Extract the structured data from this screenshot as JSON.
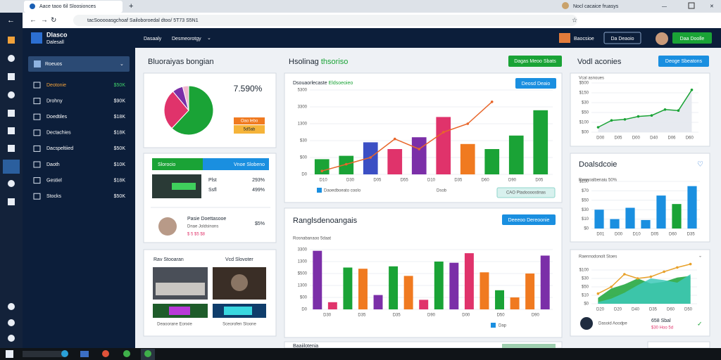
{
  "browser": {
    "tab": "Aace taoo 6il Sloosionces",
    "tab2": "Nocl cacaice fruasys",
    "url": "tacSooooasgchoaf Sailoboroedal dtoo/ 5T73 S5N1"
  },
  "header": {
    "brand": "Dlasco",
    "brand_sub": "Dalesall",
    "nav1": "Dasaaly",
    "nav2": "Desmeorotgy",
    "user": "Baocsioe",
    "btn1": "Da Deaoio",
    "btn2": "Daa Doolle"
  },
  "sidebar": {
    "selector": "Roeuos",
    "items": [
      {
        "label": "Deotonie",
        "value": "$50K"
      },
      {
        "label": "Drohny",
        "value": "$90K"
      },
      {
        "label": "Doedtiles",
        "value": "$18K"
      },
      {
        "label": "Dectachies",
        "value": "$18K"
      },
      {
        "label": "Dacspeltiied",
        "value": "$50K"
      },
      {
        "label": "Daoth",
        "value": "$10K"
      },
      {
        "label": "Gestiel",
        "value": "$18K"
      },
      {
        "label": "Stocks",
        "value": "$50K"
      }
    ]
  },
  "panel_a": {
    "title": "Bluoraiyas bongian",
    "big_value": "7.590%",
    "badge1": "Oao lebo",
    "badge2": "5d5ab",
    "pie": {
      "values": [
        62,
        27,
        7,
        4
      ],
      "colors": [
        "#1aa336",
        "#e0336b",
        "#7b2fa8",
        "#f2b8cf"
      ]
    }
  },
  "panel_b": {
    "tab_left": "Slorocio",
    "tab_right": "Vnoe Slobeno",
    "row1_a": "Plst",
    "row1_b": "Ssfl",
    "row1_c": "293%",
    "row1_d": "499%",
    "row2_a": "Pasie Doettasooe",
    "row2_b": "Dnae Joldsinons",
    "row2_c": "$ 5 $5 $8",
    "row2_d": "$5%"
  },
  "panel_c": {
    "label_left": "Rav Stooaran",
    "label_right": "Vcd Slovoter",
    "caption_left": "Deaoorane Eonxie",
    "caption_right": "Sceorofen Sloone"
  },
  "middle": {
    "title": "Hsolinag",
    "title_accent": "thsoriso",
    "button": "Dagas Meoo Sbats"
  },
  "chart1": {
    "title": "Dsouaorlecaste",
    "title_accent": "Eldsoeoieo",
    "button": "Deosd Deaio",
    "legend_a": "Daoedboeato coolo",
    "legend_b": "Dsob",
    "badge": "CAO Ptadoooostinas",
    "ylim": [
      0,
      5
    ],
    "yticks": [
      {
        "value": 0,
        "label": "D0"
      },
      {
        "value": 1,
        "label": "$00"
      },
      {
        "value": 2,
        "label": "$30"
      },
      {
        "value": 3,
        "label": "1300"
      },
      {
        "value": 4,
        "label": "3300"
      },
      {
        "value": 5,
        "label": "5300"
      }
    ],
    "x_labels": [
      "D10",
      "D30",
      "D05",
      "D55",
      "D10",
      "D35",
      "D60",
      "D90",
      "D05"
    ],
    "bars": [
      {
        "value": 0.9,
        "color": "#1aa336"
      },
      {
        "value": 1.1,
        "color": "#1aa336"
      },
      {
        "value": 1.9,
        "color": "#3b4fc4"
      },
      {
        "value": 1.5,
        "color": "#e0336b"
      },
      {
        "value": 2.2,
        "color": "#7b2fa8"
      },
      {
        "value": 3.4,
        "color": "#e0336b"
      },
      {
        "value": 1.8,
        "color": "#f07a20"
      },
      {
        "value": 1.5,
        "color": "#1aa336"
      },
      {
        "value": 2.3,
        "color": "#1aa336"
      },
      {
        "value": 3.8,
        "color": "#1aa336"
      }
    ],
    "line": {
      "color": "#e8662a",
      "values": [
        0.2,
        0.6,
        1.0,
        2.1,
        1.5,
        2.5,
        3.0,
        4.3
      ]
    }
  },
  "chart2": {
    "title": "Ranglsdenoangais",
    "button": "Deeeoo Dereoonie",
    "subtitle": "Rosnabanaoo 5daat",
    "legend": "Dap",
    "bottom_title": "Baaiilotenia",
    "ylim": [
      0,
      5
    ],
    "yticks": [
      {
        "value": 0,
        "label": "D0"
      },
      {
        "value": 1,
        "label": "$00"
      },
      {
        "value": 2,
        "label": "1300"
      },
      {
        "value": 3,
        "label": "$500"
      },
      {
        "value": 4,
        "label": "1300"
      },
      {
        "value": 5,
        "label": "3300"
      }
    ],
    "x_labels": [
      "D30",
      "D35",
      "D35",
      "D90",
      "D00",
      "D50",
      "D90"
    ],
    "bars": [
      {
        "value": 4.9,
        "color": "#7b2fa8"
      },
      {
        "value": 0.6,
        "color": "#e0336b"
      },
      {
        "value": 3.5,
        "color": "#1aa336"
      },
      {
        "value": 3.4,
        "color": "#f07a20"
      },
      {
        "value": 1.2,
        "color": "#7b2fa8"
      },
      {
        "value": 3.6,
        "color": "#1aa336"
      },
      {
        "value": 2.8,
        "color": "#f07a20"
      },
      {
        "value": 0.8,
        "color": "#e0336b"
      },
      {
        "value": 4.0,
        "color": "#1aa336"
      },
      {
        "value": 3.9,
        "color": "#7b2fa8"
      },
      {
        "value": 4.7,
        "color": "#e0336b"
      },
      {
        "value": 3.1,
        "color": "#f07a20"
      },
      {
        "value": 1.6,
        "color": "#1aa336"
      },
      {
        "value": 1.0,
        "color": "#f07a20"
      },
      {
        "value": 3.0,
        "color": "#f07a20"
      },
      {
        "value": 4.5,
        "color": "#7b2fa8"
      }
    ]
  },
  "chart3": {
    "title": "Vodl aconies",
    "button": "Deoge Sbeatons",
    "subtitle": "Vcal asnoues",
    "ylim": [
      0,
      5
    ],
    "yticks": [
      {
        "value": 0,
        "label": "$00"
      },
      {
        "value": 1,
        "label": "$100"
      },
      {
        "value": 2,
        "label": "$50"
      },
      {
        "value": 3,
        "label": "$30"
      },
      {
        "value": 4,
        "label": "$150"
      },
      {
        "value": 5,
        "label": "$500"
      }
    ],
    "x_labels": [
      "D00",
      "D05",
      "D00",
      "D40",
      "D06",
      "D60"
    ],
    "line": {
      "color": "#1aa336",
      "values": [
        0.5,
        1.2,
        1.3,
        1.6,
        1.7,
        2.3,
        2.2,
        4.3
      ]
    }
  },
  "chart4": {
    "title": "Doalsdcoie",
    "subtitle": "Rannoalbenaiu 50%",
    "ylim": [
      0,
      5
    ],
    "yticks": [
      {
        "value": 0,
        "label": "$0"
      },
      {
        "value": 1,
        "label": "$10"
      },
      {
        "value": 2,
        "label": "$30"
      },
      {
        "value": 3,
        "label": "$50"
      },
      {
        "value": 4,
        "label": "$70"
      },
      {
        "value": 5,
        "label": "$150"
      }
    ],
    "x_labels": [
      "D01",
      "D00",
      "D10",
      "D05",
      "D60",
      "D35"
    ],
    "bars": [
      {
        "value": 2.0,
        "color": "#1a8fe0"
      },
      {
        "value": 1.0,
        "color": "#1a8fe0"
      },
      {
        "value": 2.2,
        "color": "#1a8fe0"
      },
      {
        "value": 0.9,
        "color": "#1a8fe0"
      },
      {
        "value": 3.5,
        "color": "#1a8fe0"
      },
      {
        "value": 2.6,
        "color": "#1aa336"
      },
      {
        "value": 4.5,
        "color": "#1a8fe0"
      }
    ]
  },
  "chart5": {
    "subtitle": "Raennodonolt Stoes",
    "row_name": "Dasoid Aoodpe",
    "row_value": "658 Sbal",
    "row_note": "$30 Hoo 5d",
    "ylim": [
      0,
      5
    ],
    "yticks": [
      {
        "value": 0,
        "label": "$0"
      },
      {
        "value": 1,
        "label": "$10"
      },
      {
        "value": 2,
        "label": "$50"
      },
      {
        "value": 3,
        "label": "$30"
      },
      {
        "value": 4,
        "label": "$100"
      }
    ],
    "x_labels": [
      "D20",
      "D20",
      "D40",
      "D35",
      "D60",
      "D50"
    ],
    "areas": [
      {
        "color": "#1aa336",
        "values": [
          0.7,
          1.8,
          2.3,
          3.0,
          2.4,
          2.6,
          3.1,
          3.3
        ]
      },
      {
        "color": "#3cc9b8",
        "values": [
          0.2,
          0.6,
          1.3,
          2.2,
          3.0,
          2.8,
          2.5,
          3.5
        ]
      }
    ],
    "line": {
      "color": "#e8a12a",
      "values": [
        1.2,
        2.0,
        3.5,
        3.0,
        3.2,
        3.8,
        4.3,
        4.7
      ]
    }
  }
}
